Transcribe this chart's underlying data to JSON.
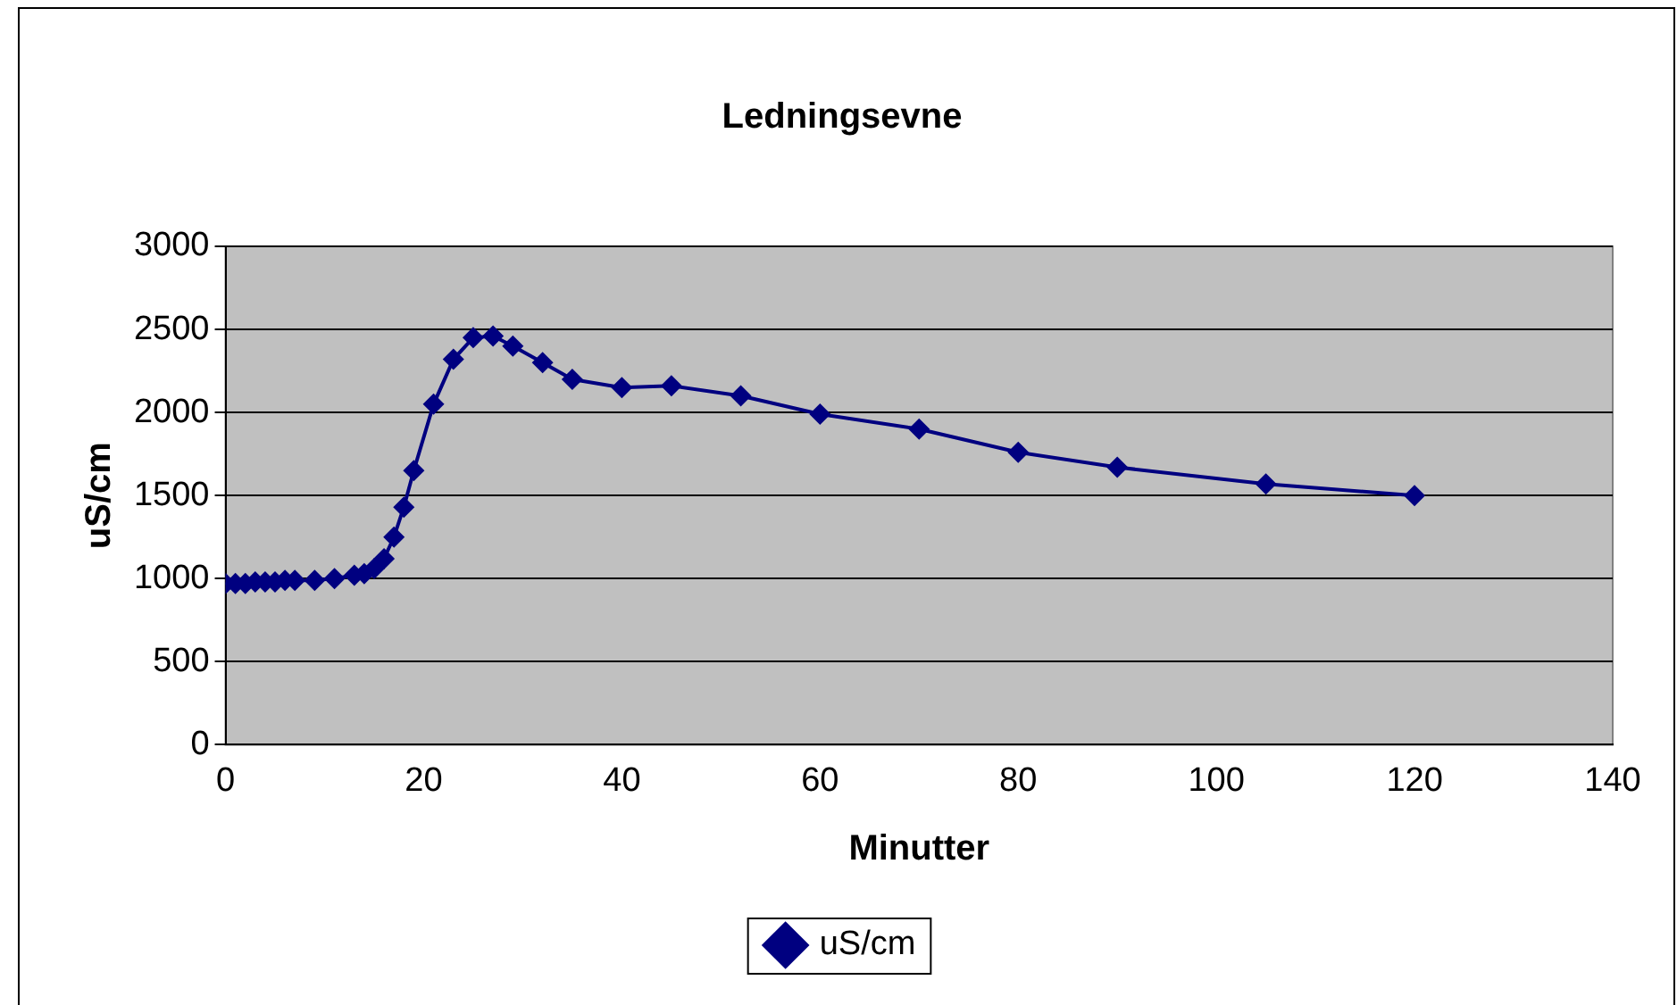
{
  "chart_data": {
    "type": "line",
    "title": "Ledningsevne",
    "xlabel": "Minutter",
    "ylabel": "uS/cm",
    "x": [
      0,
      1,
      2,
      3,
      4,
      5,
      6,
      7,
      9,
      11,
      13,
      14,
      15,
      16,
      17,
      18,
      19,
      21,
      23,
      25,
      27,
      29,
      32,
      35,
      40,
      45,
      52,
      60,
      70,
      80,
      90,
      105,
      120
    ],
    "series": [
      {
        "name": "uS/cm",
        "color": "#000080",
        "values": [
          970,
          970,
          970,
          980,
          980,
          980,
          990,
          990,
          990,
          1000,
          1020,
          1030,
          1060,
          1120,
          1250,
          1430,
          1650,
          2050,
          2320,
          2450,
          2460,
          2400,
          2300,
          2200,
          2150,
          2160,
          2100,
          1990,
          1900,
          1760,
          1670,
          1570,
          1500
        ]
      }
    ],
    "xlim": [
      0,
      140
    ],
    "xticks": [
      0,
      20,
      40,
      60,
      80,
      100,
      120,
      140
    ],
    "ylim": [
      0,
      3000
    ],
    "yticks": [
      0,
      500,
      1000,
      1500,
      2000,
      2500,
      3000
    ],
    "grid": "y",
    "legend": "bottom",
    "marker": "diamond",
    "line_style": "solid"
  }
}
